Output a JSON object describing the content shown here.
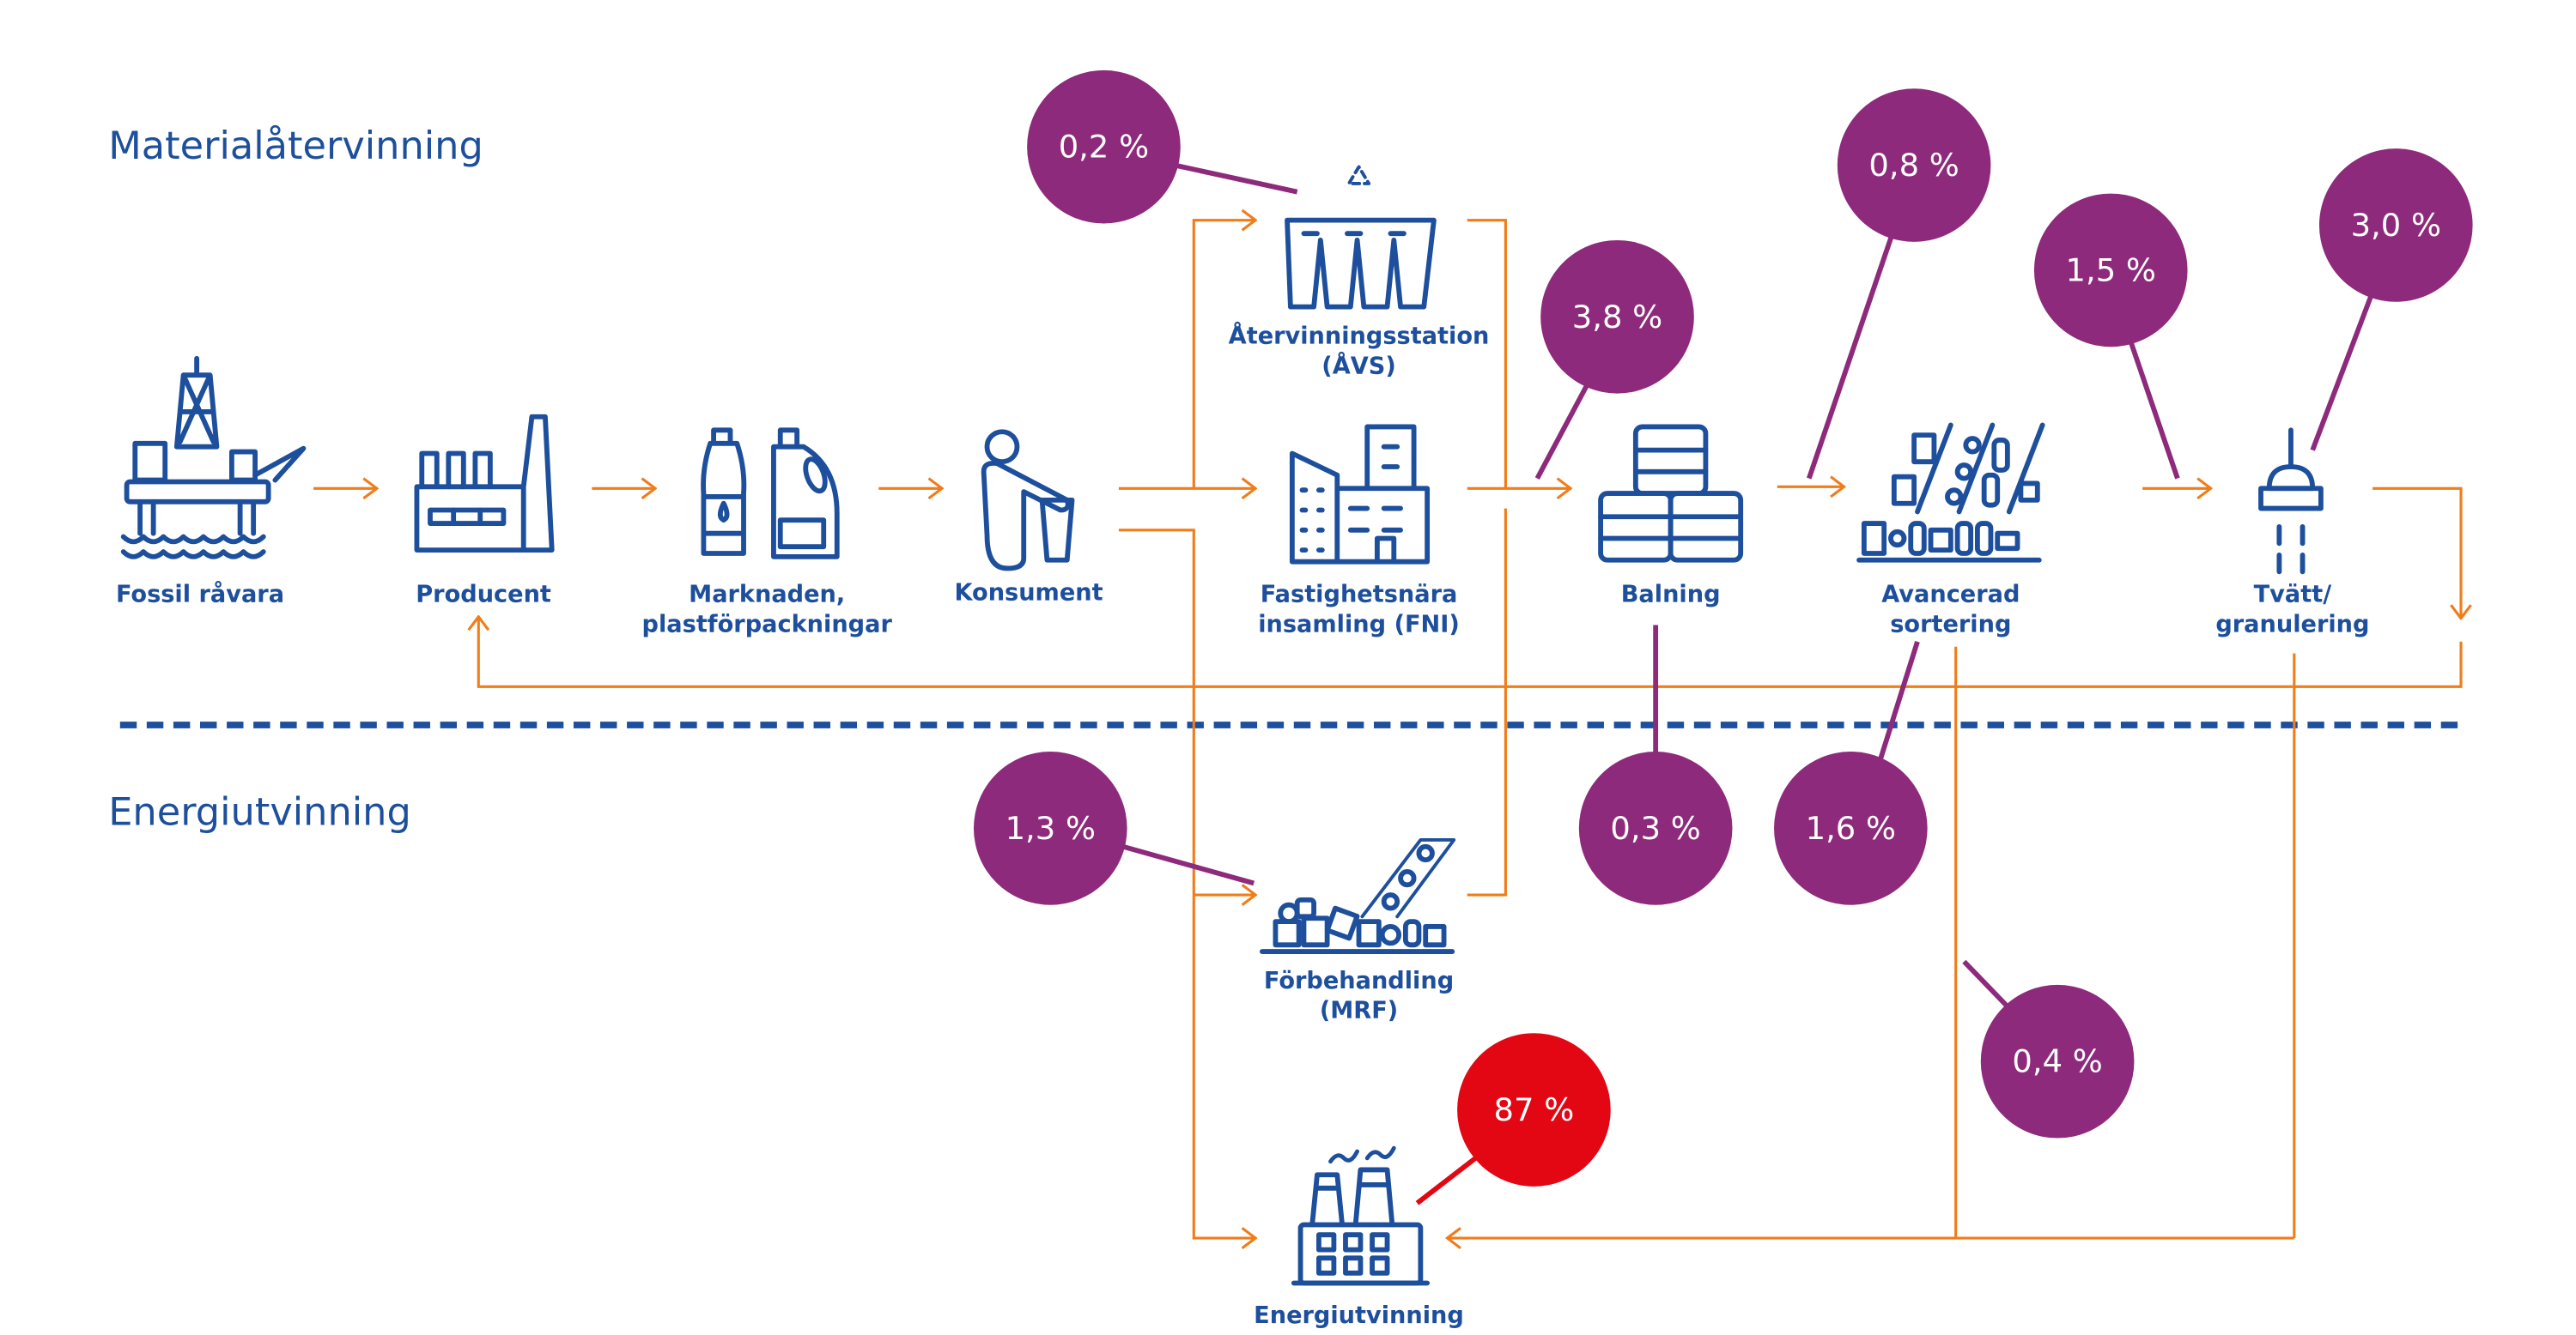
{
  "colors": {
    "brand_blue": "#1d4f9c",
    "flow_orange": "#f07c1a",
    "share_purple": "#8e2a7b",
    "share_red": "#e30613"
  },
  "sections": {
    "material": "Materialåtervinning",
    "energy": "Energiutvinning"
  },
  "nodes": {
    "fossil": {
      "label": "Fossil råvara",
      "icon": "oil-platform-icon"
    },
    "producent": {
      "label": "Producent",
      "icon": "factory-icon"
    },
    "marknaden": {
      "line1": "Marknaden,",
      "line2": "plastförpackningar",
      "icon": "bottles-icon"
    },
    "konsument": {
      "label": "Konsument",
      "icon": "person-trash-icon"
    },
    "avs": {
      "line1": "Återvinningsstation",
      "line2": "(ÅVS)",
      "icon": "recycling-bins-icon"
    },
    "fni": {
      "line1": "Fastighetsnära",
      "line2": "insamling (FNI)",
      "icon": "buildings-icon"
    },
    "balning": {
      "label": "Balning",
      "icon": "bales-icon"
    },
    "avancerad": {
      "line1": "Avancerad",
      "line2": "sortering",
      "icon": "sorting-icon"
    },
    "tvatt": {
      "line1": "Tvätt/",
      "line2": "granulering",
      "icon": "washer-icon"
    },
    "forbehandling": {
      "line1": "Förbehandling",
      "line2": "(MRF)",
      "icon": "conveyor-icon"
    },
    "energi": {
      "label": "Energiutvinning",
      "icon": "power-plant-icon"
    }
  },
  "shares": {
    "avs": "0,2 %",
    "balning_in": "3,8 %",
    "avancerad_in": "0,8 %",
    "tvatt_in": "1,5 %",
    "tvatt_out": "3,0 %",
    "forbehandling": "1,3 %",
    "balning_loss": "0,3 %",
    "avancerad_loss": "1,6 %",
    "avancerad_energy": "0,4 %",
    "energi": "87 %"
  }
}
